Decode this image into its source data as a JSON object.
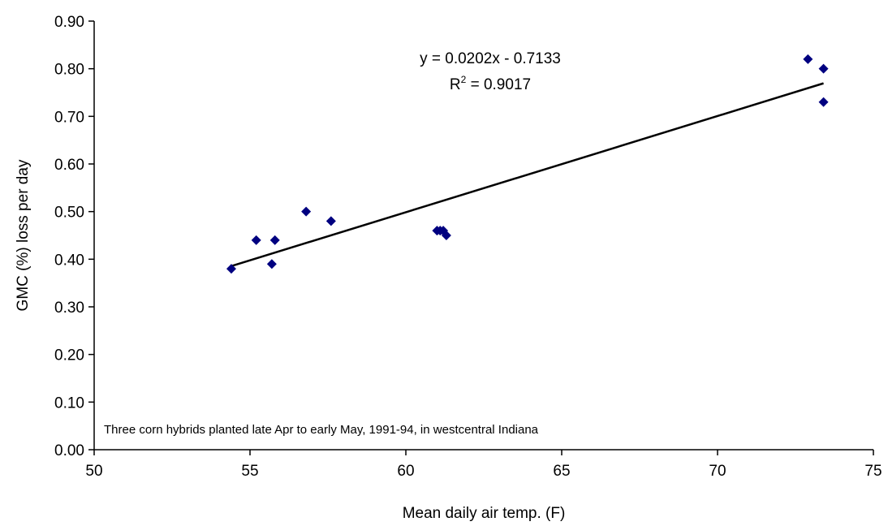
{
  "chart_data": {
    "type": "scatter",
    "xlabel": "Mean daily air temp. (F)",
    "ylabel": "GMC (%) loss per day",
    "xlim": [
      50,
      75
    ],
    "ylim": [
      0,
      0.9
    ],
    "x_ticks": [
      "50",
      "55",
      "60",
      "65",
      "70",
      "75"
    ],
    "y_ticks": [
      "0.00",
      "0.10",
      "0.20",
      "0.30",
      "0.40",
      "0.50",
      "0.60",
      "0.70",
      "0.80",
      "0.90"
    ],
    "grid": false,
    "marker_color": "#000080",
    "series": [
      {
        "x": [
          54.4,
          55.2,
          55.7,
          55.8,
          56.8,
          57.6,
          61.0,
          61.1,
          61.2,
          61.3,
          72.9,
          73.4,
          73.4
        ],
        "y": [
          0.38,
          0.44,
          0.39,
          0.44,
          0.5,
          0.48,
          0.46,
          0.46,
          0.46,
          0.45,
          0.82,
          0.8,
          0.73
        ]
      }
    ],
    "trendline": {
      "type": "linear",
      "slope": 0.0202,
      "intercept": -0.7133,
      "x_range": [
        54.4,
        73.4
      ],
      "equation": "y = 0.0202x - 0.7133",
      "r2_label": "R",
      "r2_superscript": "2",
      "r2_value": " = 0.9017"
    },
    "note": "Three corn hybrids planted late Apr to early May, 1991-94, in westcentral Indiana"
  }
}
